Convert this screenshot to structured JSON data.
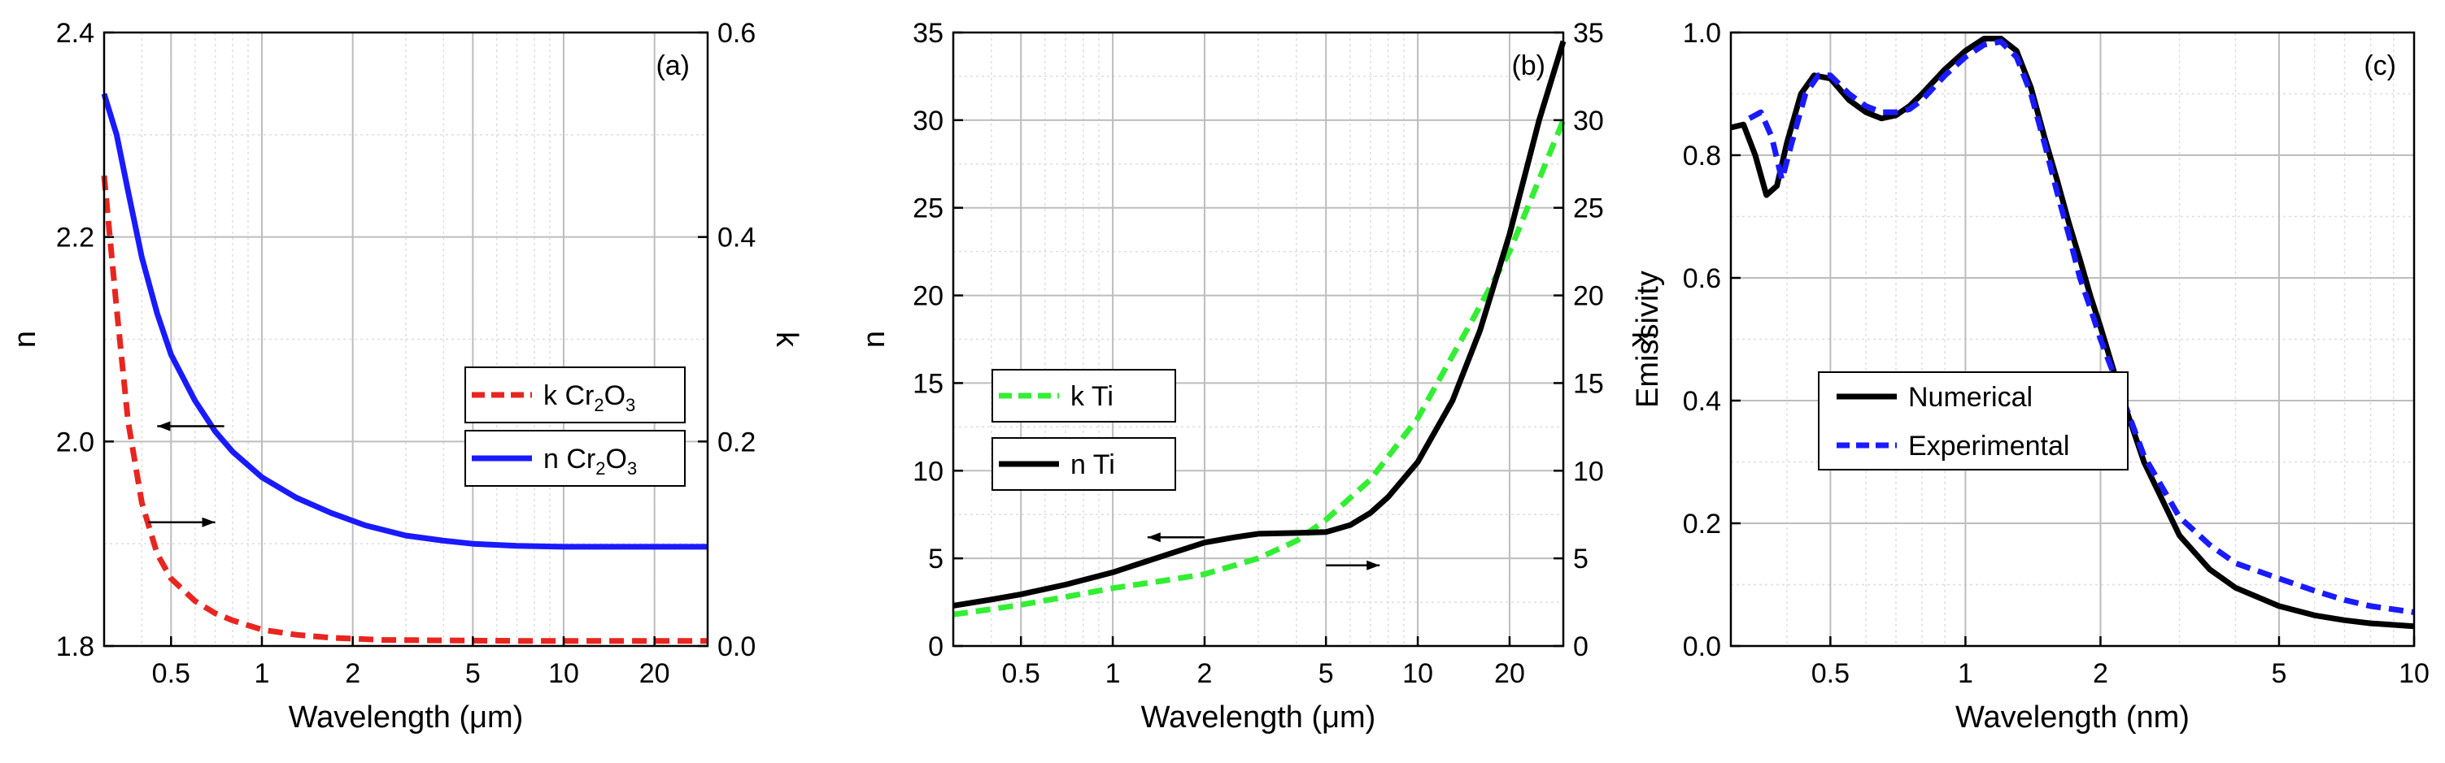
{
  "figure": {
    "colors": {
      "red": "#e8251f",
      "blue": "#1a1aff",
      "green": "#33ee33",
      "black": "#000000",
      "grid": "#bdbdbd",
      "minor_grid": "#dedede"
    }
  },
  "chart_data": [
    {
      "type": "line",
      "panel_label": "(a)",
      "xlabel": "Wavelength (μm)",
      "ylabel": "n",
      "ylabel_right": "k",
      "xscale": "log",
      "xlim": [
        0.3,
        30
      ],
      "ylim": [
        1.8,
        2.4
      ],
      "ylim_right": [
        0.0,
        0.6
      ],
      "xticks": [
        0.5,
        1,
        2,
        5,
        10,
        20
      ],
      "xtick_labels": [
        "0.5",
        "1",
        "2",
        "5",
        "10",
        "20"
      ],
      "yticks": [
        1.8,
        2.0,
        2.2,
        2.4
      ],
      "ytick_labels": [
        "1.8",
        "2.0",
        "2.2",
        "2.4"
      ],
      "yticks_right": [
        0.0,
        0.2,
        0.4,
        0.6
      ],
      "ytick_labels_right": [
        "0.0",
        "0.2",
        "0.4",
        "0.6"
      ],
      "grid": true,
      "series": [
        {
          "name": "k Cr2O3",
          "legend_main": "k Cr",
          "legend_sub1": "2",
          "legend_mid": "O",
          "legend_sub2": "3",
          "axis": "right",
          "style": "dashed",
          "color": "#e8251f",
          "x": [
            0.3,
            0.33,
            0.36,
            0.4,
            0.45,
            0.5,
            0.6,
            0.7,
            0.8,
            1.0,
            1.3,
            1.7,
            2.5,
            4,
            7,
            15,
            30
          ],
          "y": [
            0.46,
            0.33,
            0.22,
            0.14,
            0.09,
            0.066,
            0.044,
            0.032,
            0.025,
            0.016,
            0.011,
            0.008,
            0.006,
            0.0055,
            0.005,
            0.005,
            0.005
          ]
        },
        {
          "name": "n Cr2O3",
          "legend_main": "n Cr",
          "legend_sub1": "2",
          "legend_mid": "O",
          "legend_sub2": "3",
          "axis": "left",
          "style": "solid",
          "color": "#1a1aff",
          "x": [
            0.3,
            0.33,
            0.36,
            0.4,
            0.45,
            0.5,
            0.6,
            0.7,
            0.8,
            1.0,
            1.3,
            1.7,
            2.2,
            3,
            4,
            5,
            7,
            10,
            20,
            30
          ],
          "y": [
            2.34,
            2.3,
            2.245,
            2.18,
            2.125,
            2.085,
            2.04,
            2.01,
            1.99,
            1.965,
            1.945,
            1.93,
            1.918,
            1.908,
            1.903,
            1.9,
            1.898,
            1.897,
            1.897,
            1.897
          ]
        }
      ],
      "annotations": [
        {
          "kind": "arrow-left",
          "x_from": 0.75,
          "x_to": 0.45,
          "axis": "left",
          "y": 2.015
        },
        {
          "kind": "arrow-right",
          "x_from": 0.42,
          "x_to": 0.7,
          "axis": "right",
          "y": 0.121
        }
      ]
    },
    {
      "type": "line",
      "panel_label": "(b)",
      "xlabel": "Wavelength (μm)",
      "ylabel": "n",
      "ylabel_right": "k",
      "xscale": "log",
      "xlim": [
        0.3,
        30
      ],
      "ylim": [
        0,
        35
      ],
      "ylim_right": [
        0,
        35
      ],
      "xticks": [
        0.5,
        1,
        2,
        5,
        10,
        20
      ],
      "xtick_labels": [
        "0.5",
        "1",
        "2",
        "5",
        "10",
        "20"
      ],
      "yticks": [
        0,
        5,
        10,
        15,
        20,
        25,
        30,
        35
      ],
      "ytick_labels": [
        "0",
        "5",
        "10",
        "15",
        "20",
        "25",
        "30",
        "35"
      ],
      "yticks_right": [
        0,
        5,
        10,
        15,
        20,
        25,
        30,
        35
      ],
      "ytick_labels_right": [
        "0",
        "5",
        "10",
        "15",
        "20",
        "25",
        "30",
        "35"
      ],
      "grid": true,
      "series": [
        {
          "name": "k Ti",
          "legend_main": "k Ti",
          "axis": "right",
          "style": "dashed",
          "color": "#33ee33",
          "x": [
            0.3,
            0.4,
            0.5,
            0.7,
            1.0,
            1.5,
            2.0,
            3.0,
            4.0,
            5.0,
            7.0,
            10,
            15,
            20,
            30
          ],
          "y": [
            1.8,
            2.1,
            2.35,
            2.8,
            3.3,
            3.75,
            4.1,
            5.0,
            6.0,
            7.2,
            9.5,
            13,
            18.5,
            22.5,
            30
          ]
        },
        {
          "name": "n Ti",
          "legend_main": "n Ti",
          "axis": "left",
          "style": "solid",
          "color": "#000000",
          "x": [
            0.3,
            0.4,
            0.5,
            0.7,
            1.0,
            1.5,
            2.0,
            2.5,
            3.0,
            4.0,
            5.0,
            6.0,
            7.0,
            8.0,
            10,
            13,
            16,
            20,
            25,
            30
          ],
          "y": [
            2.3,
            2.65,
            2.95,
            3.5,
            4.2,
            5.2,
            5.9,
            6.2,
            6.4,
            6.45,
            6.5,
            6.9,
            7.6,
            8.5,
            10.5,
            14,
            18,
            23.5,
            30,
            34.5
          ]
        }
      ],
      "annotations": [
        {
          "kind": "arrow-left",
          "x_from": 2.0,
          "x_to": 1.3,
          "axis": "left",
          "y": 6.2
        },
        {
          "kind": "arrow-right",
          "x_from": 5.0,
          "x_to": 7.5,
          "axis": "right",
          "y": 4.6
        }
      ]
    },
    {
      "type": "line",
      "panel_label": "(c)",
      "xlabel": "Wavelength (nm)",
      "ylabel": "Emissivity",
      "xscale": "log",
      "xlim": [
        0.3,
        10
      ],
      "ylim": [
        0.0,
        1.0
      ],
      "xticks": [
        0.5,
        1,
        2,
        5,
        10
      ],
      "xtick_labels": [
        "0.5",
        "1",
        "2",
        "5",
        "10"
      ],
      "yticks": [
        0.0,
        0.2,
        0.4,
        0.6,
        0.8,
        1.0
      ],
      "ytick_labels": [
        "0.0",
        "0.2",
        "0.4",
        "0.6",
        "0.8",
        "1.0"
      ],
      "grid": true,
      "series": [
        {
          "name": "Numerical",
          "legend_main": "Numerical",
          "axis": "left",
          "style": "solid",
          "color": "#000000",
          "x": [
            0.3,
            0.32,
            0.34,
            0.36,
            0.38,
            0.4,
            0.43,
            0.46,
            0.5,
            0.55,
            0.6,
            0.65,
            0.7,
            0.75,
            0.8,
            0.9,
            1.0,
            1.1,
            1.2,
            1.3,
            1.4,
            1.5,
            1.6,
            1.7,
            1.8,
            1.9,
            2.0,
            2.2,
            2.5,
            3.0,
            3.5,
            4.0,
            5.0,
            6.0,
            7.0,
            8.0,
            10
          ],
          "y": [
            0.845,
            0.85,
            0.8,
            0.735,
            0.75,
            0.82,
            0.9,
            0.93,
            0.925,
            0.89,
            0.87,
            0.86,
            0.865,
            0.88,
            0.9,
            0.94,
            0.97,
            0.99,
            0.99,
            0.97,
            0.91,
            0.83,
            0.76,
            0.69,
            0.63,
            0.57,
            0.52,
            0.42,
            0.3,
            0.18,
            0.125,
            0.095,
            0.065,
            0.05,
            0.042,
            0.037,
            0.032
          ]
        },
        {
          "name": "Experimental",
          "legend_main": "Experimental",
          "axis": "left",
          "style": "dashed",
          "color": "#1a1aff",
          "x": [
            0.33,
            0.35,
            0.37,
            0.39,
            0.41,
            0.44,
            0.47,
            0.5,
            0.55,
            0.6,
            0.65,
            0.7,
            0.75,
            0.8,
            0.9,
            1.0,
            1.1,
            1.2,
            1.3,
            1.4,
            1.5,
            1.6,
            1.7,
            1.8,
            1.9,
            2.0,
            2.2,
            2.5,
            3.0,
            3.5,
            4.0,
            5.0,
            6.0,
            7.0,
            8.0,
            10
          ],
          "y": [
            0.86,
            0.87,
            0.83,
            0.76,
            0.82,
            0.9,
            0.93,
            0.93,
            0.9,
            0.88,
            0.87,
            0.87,
            0.875,
            0.89,
            0.93,
            0.96,
            0.98,
            0.985,
            0.96,
            0.9,
            0.82,
            0.74,
            0.67,
            0.6,
            0.55,
            0.5,
            0.42,
            0.31,
            0.21,
            0.165,
            0.135,
            0.11,
            0.09,
            0.075,
            0.065,
            0.055
          ]
        }
      ],
      "annotations": []
    }
  ]
}
